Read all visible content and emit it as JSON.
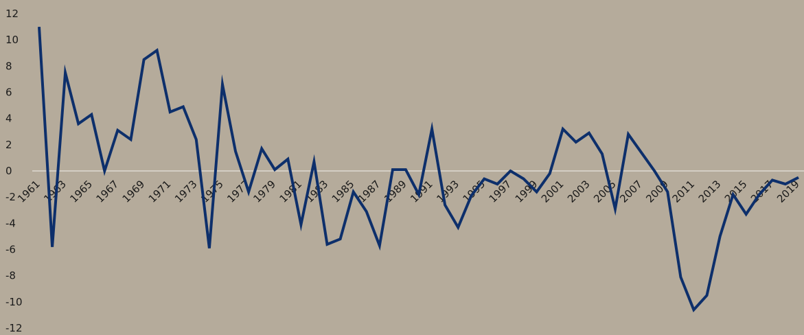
{
  "chart_data": {
    "type": "line",
    "title": "",
    "xlabel": "",
    "ylabel": "",
    "ylim": [
      -12,
      12
    ],
    "yticks": [
      12,
      10,
      8,
      6,
      4,
      2,
      0,
      -2,
      -4,
      -6,
      -8,
      -10,
      -12
    ],
    "grid": false,
    "zero_line": true,
    "x_tick_labels": [
      "1961",
      "1963",
      "1965",
      "1967",
      "1969",
      "1971",
      "1973",
      "1975",
      "1977",
      "1979",
      "1981",
      "1983",
      "1985",
      "1987",
      "1989",
      "1991",
      "1993",
      "1995",
      "1997",
      "1999",
      "2001",
      "2003",
      "2005",
      "2007",
      "2009",
      "2011",
      "2013",
      "2015",
      "2017",
      "2019"
    ],
    "x": [
      1961,
      1962,
      1963,
      1964,
      1965,
      1966,
      1967,
      1968,
      1969,
      1970,
      1971,
      1972,
      1973,
      1974,
      1975,
      1976,
      1977,
      1978,
      1979,
      1980,
      1981,
      1982,
      1983,
      1984,
      1985,
      1986,
      1987,
      1988,
      1989,
      1990,
      1991,
      1992,
      1993,
      1994,
      1995,
      1996,
      1997,
      1998,
      1999,
      2000,
      2001,
      2002,
      2003,
      2004,
      2005,
      2006,
      2007,
      2008,
      2009,
      2010,
      2011,
      2012,
      2013,
      2014,
      2015,
      2016,
      2017,
      2018,
      2019
    ],
    "series": [
      {
        "name": "",
        "color": "#0d2f6b",
        "values": [
          11.0,
          -5.8,
          7.5,
          3.6,
          4.3,
          0.0,
          3.1,
          2.4,
          8.5,
          9.2,
          4.5,
          4.9,
          2.4,
          -5.9,
          6.6,
          1.5,
          -1.6,
          1.7,
          0.1,
          0.9,
          -4.1,
          0.7,
          -5.6,
          -5.2,
          -1.6,
          -3.1,
          -5.7,
          0.1,
          0.1,
          -1.8,
          3.2,
          -2.6,
          -4.3,
          -1.9,
          -0.6,
          -1.0,
          0.0,
          -0.6,
          -1.6,
          -0.2,
          3.2,
          2.2,
          2.9,
          1.3,
          -2.9,
          2.8,
          1.4,
          0.0,
          -1.6,
          -8.1,
          -10.6,
          -9.5,
          -5.0,
          -1.8,
          -3.3,
          -1.8,
          -0.7,
          -1.0,
          -0.5
        ]
      }
    ]
  }
}
